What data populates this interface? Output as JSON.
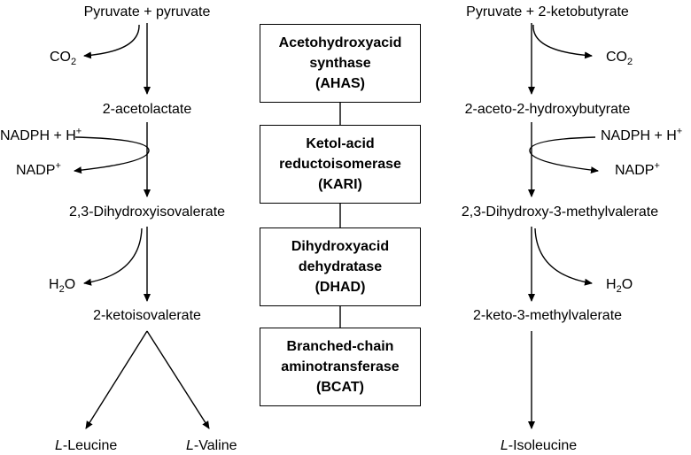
{
  "left": {
    "start": "Pyruvate + pyruvate",
    "co2": "CO",
    "co2_sub": "2",
    "acetolactate": "2-acetolactate",
    "nadph": "NADPH + H",
    "nadph_sup": "+",
    "nadp": "NADP",
    "nadp_sup": "+",
    "dihydroxy": "2,3-Dihydroxyisovalerate",
    "h2o_a": "H",
    "h2o_sub": "2",
    "h2o_b": "O",
    "ketoiso": "2-ketoisovalerate",
    "leucine_prefix": "L",
    "leucine": "-Leucine",
    "valine_prefix": "L",
    "valine": "-Valine"
  },
  "right": {
    "start": "Pyruvate + 2-ketobutyrate",
    "co2": "CO",
    "co2_sub": "2",
    "aceto": "2-aceto-2-hydroxybutyrate",
    "nadph": "NADPH + H",
    "nadph_sup": "+",
    "nadp": "NADP",
    "nadp_sup": "+",
    "dihydroxy": "2,3-Dihydroxy-3-methylvalerate",
    "h2o_a": "H",
    "h2o_sub": "2",
    "h2o_b": "O",
    "keto": "2-keto-3-methylvalerate",
    "isoleucine_prefix": "L",
    "isoleucine": "-Isoleucine"
  },
  "enzymes": [
    {
      "line1": "Acetohydroxyacid",
      "line2": "synthase",
      "abbr": "(AHAS)"
    },
    {
      "line1": "Ketol-acid",
      "line2": "reductoisomerase",
      "abbr": "(KARI)"
    },
    {
      "line1": "Dihydroxyacid",
      "line2": "dehydratase",
      "abbr": "(DHAD)"
    },
    {
      "line1": "Branched-chain",
      "line2": "aminotransferase",
      "abbr": "(BCAT)"
    }
  ]
}
